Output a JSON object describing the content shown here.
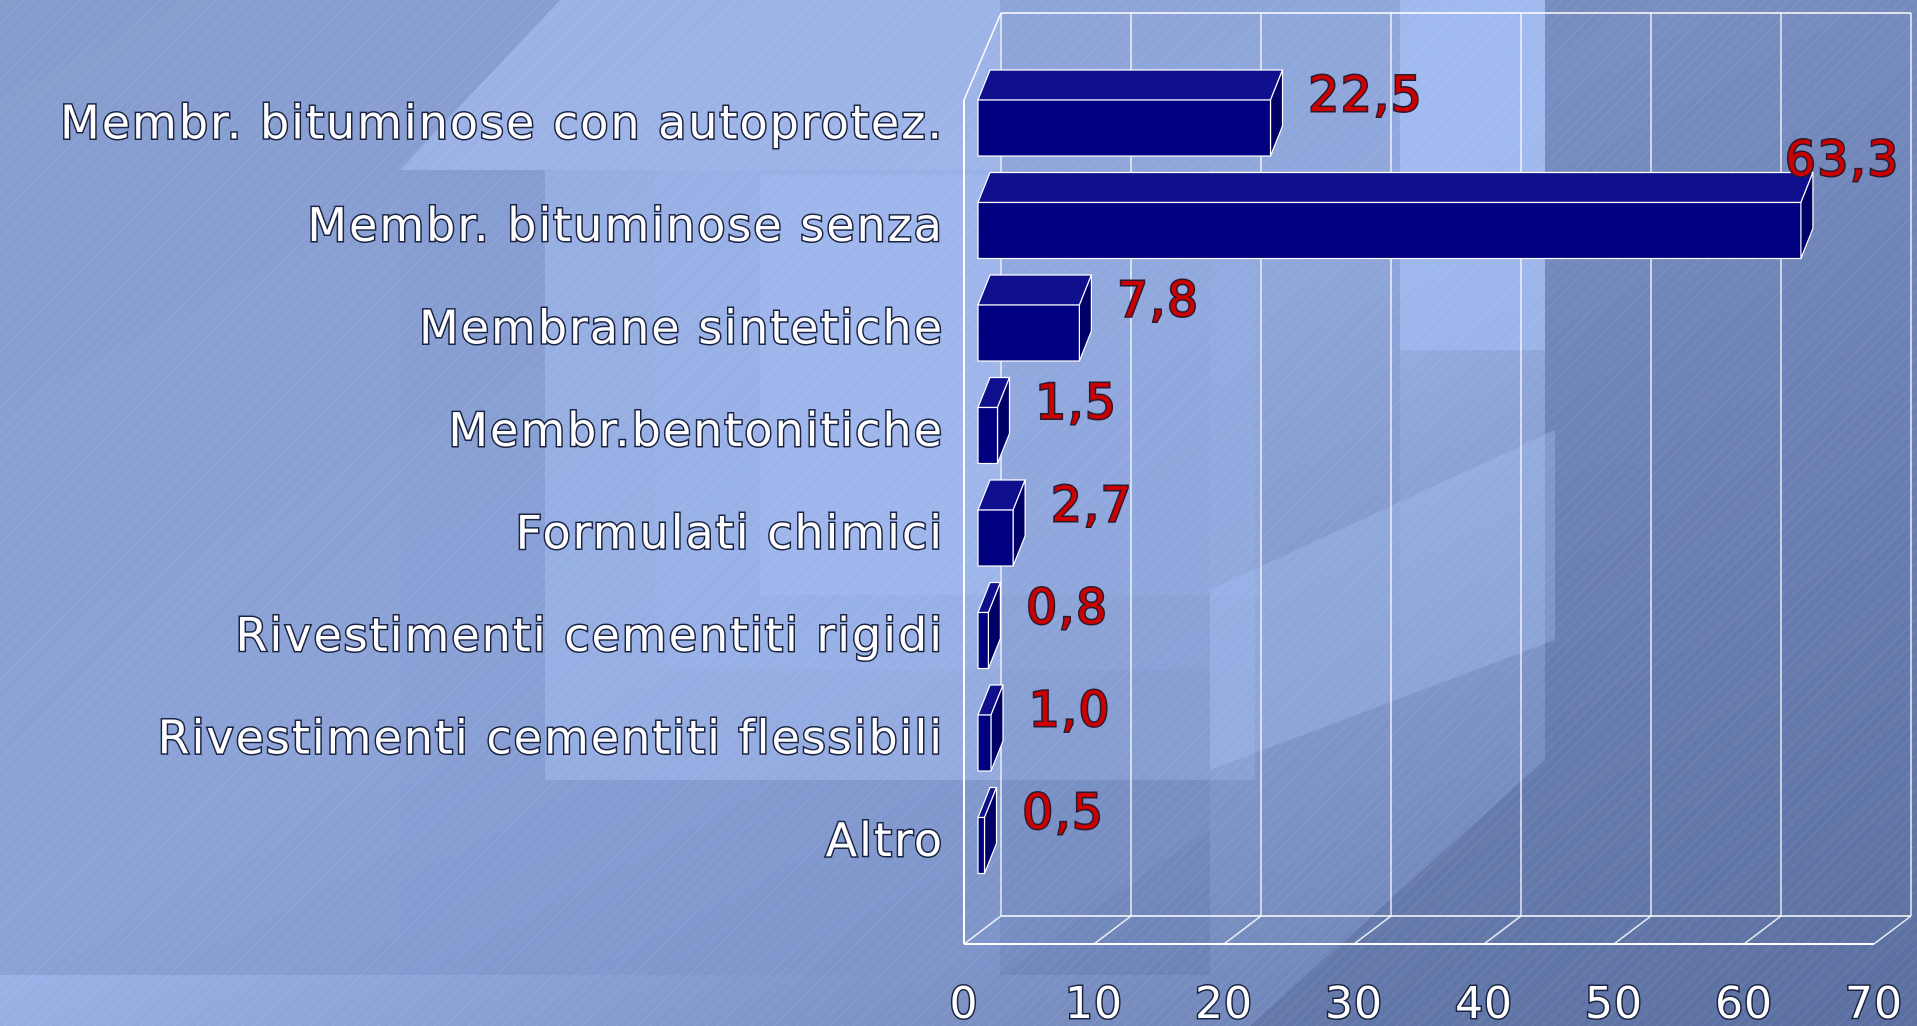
{
  "chart_data": {
    "type": "bar",
    "orientation": "horizontal",
    "style": "3d",
    "categories": [
      "Membr. bituminose con autoprotez.",
      "Membr. bituminose senza",
      "Membrane sintetiche",
      "Membr.bentonitiche",
      "Formulati chimici",
      "Rivestimenti cementiti rigidi",
      "Rivestimenti cementiti flessibili",
      "Altro"
    ],
    "values": [
      22.5,
      63.3,
      7.8,
      1.5,
      2.7,
      0.8,
      1.0,
      0.5
    ],
    "value_labels": [
      "22,5",
      "63,3",
      "7,8",
      "1,5",
      "2,7",
      "0,8",
      "1,0",
      "0,5"
    ],
    "xlim": [
      0,
      70
    ],
    "x_ticks": [
      "0",
      "10",
      "20",
      "30",
      "40",
      "50",
      "60",
      "70"
    ],
    "grid": true,
    "legend": "none"
  },
  "colors": {
    "bar_front": "#000080",
    "bar_top": "#10108f",
    "bar_side": "#000066",
    "value_label": "#cc0000",
    "axis_text": "#ffffff",
    "grid": "#ffffff"
  }
}
